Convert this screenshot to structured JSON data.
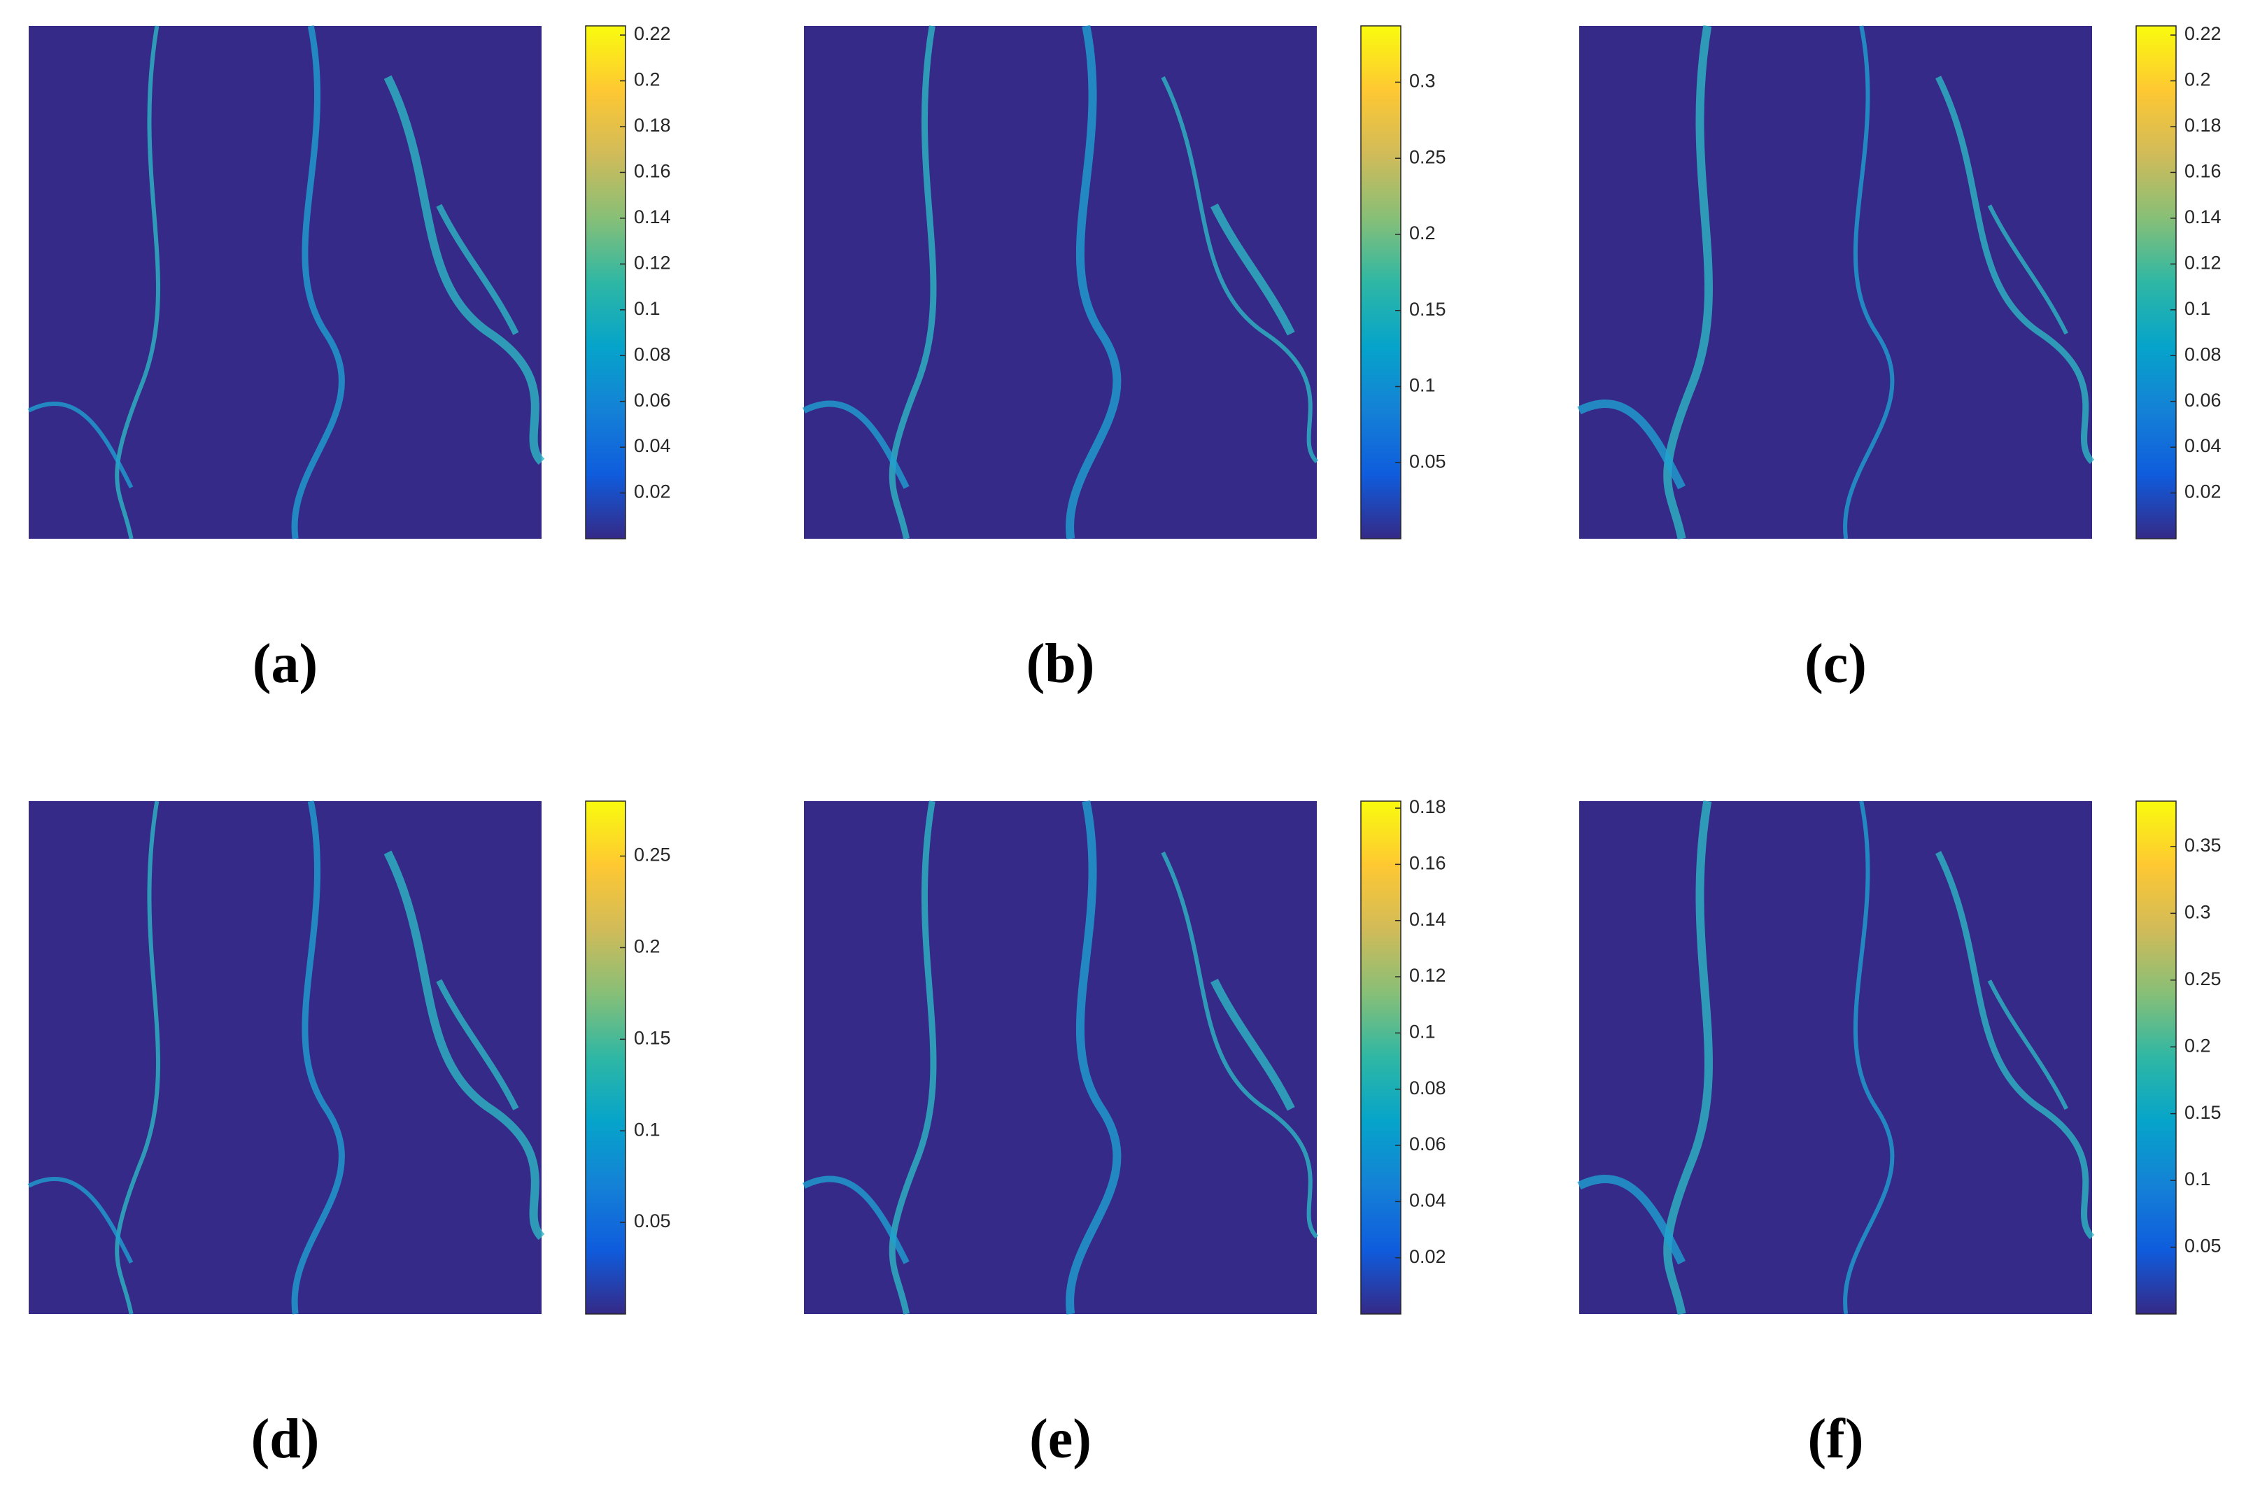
{
  "chart_data": [
    {
      "type": "heatmap",
      "label": "(a)",
      "clim": [
        0,
        0.224
      ],
      "cticks": [
        0.02,
        0.04,
        0.06,
        0.08,
        0.1,
        0.12,
        0.14,
        0.16,
        0.18,
        0.2,
        0.22
      ]
    },
    {
      "type": "heatmap",
      "label": "(b)",
      "clim": [
        0,
        0.337
      ],
      "cticks": [
        0.05,
        0.1,
        0.15,
        0.2,
        0.25,
        0.3
      ]
    },
    {
      "type": "heatmap",
      "label": "(c)",
      "clim": [
        0,
        0.224
      ],
      "cticks": [
        0.02,
        0.04,
        0.06,
        0.08,
        0.1,
        0.12,
        0.14,
        0.16,
        0.18,
        0.2,
        0.22
      ]
    },
    {
      "type": "heatmap",
      "label": "(d)",
      "clim": [
        0,
        0.28
      ],
      "cticks": [
        0.05,
        0.1,
        0.15,
        0.2,
        0.25
      ]
    },
    {
      "type": "heatmap",
      "label": "(e)",
      "clim": [
        0,
        0.1825
      ],
      "cticks": [
        0.02,
        0.04,
        0.06,
        0.08,
        0.1,
        0.12,
        0.14,
        0.16,
        0.18
      ]
    },
    {
      "type": "heatmap",
      "label": "(f)",
      "clim": [
        0,
        0.384
      ],
      "cticks": [
        0.05,
        0.1,
        0.15,
        0.2,
        0.25,
        0.3,
        0.35
      ]
    }
  ]
}
